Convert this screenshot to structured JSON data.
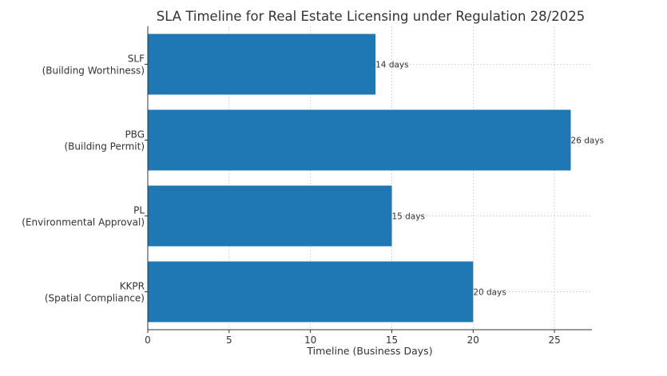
{
  "chart_data": {
    "type": "bar",
    "orientation": "horizontal",
    "title": "SLA Timeline for Real Estate Licensing under Regulation 28/2025",
    "xlabel": "Timeline (Business Days)",
    "ylabel": "",
    "categories": [
      {
        "code": "SLF",
        "desc": "(Building Worthiness)"
      },
      {
        "code": "PBG",
        "desc": "(Building Permit)"
      },
      {
        "code": "PL",
        "desc": "(Environmental Approval)"
      },
      {
        "code": "KKPR",
        "desc": "(Spatial Compliance)"
      }
    ],
    "values": [
      14,
      26,
      15,
      20
    ],
    "data_labels": [
      "14 days",
      "26 days",
      "15 days",
      "20 days"
    ],
    "xlim": [
      0,
      27.3
    ],
    "xticks": [
      0,
      5,
      10,
      15,
      20,
      25
    ],
    "grid": true,
    "bar_color": "#1f77b4"
  }
}
